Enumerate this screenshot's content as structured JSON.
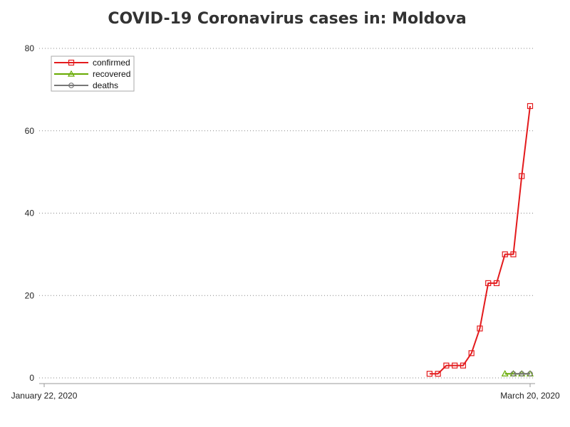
{
  "chart_data": {
    "type": "line",
    "title": "COVID-19 Coronavirus cases in: Moldova",
    "xlabel": "",
    "ylabel": "",
    "x_range": [
      "2020-01-22",
      "2020-03-20"
    ],
    "x_tick_labels": [
      "January 22, 2020",
      "March 20, 2020"
    ],
    "ylim": [
      0,
      80
    ],
    "y_ticks": [
      0,
      20,
      40,
      60,
      80
    ],
    "grid": "horizontal dotted",
    "legend_position": "top-left",
    "series": [
      {
        "name": "confirmed",
        "color": "#e31a1c",
        "marker": "square",
        "points": [
          {
            "x": "2020-03-08",
            "y": 1
          },
          {
            "x": "2020-03-09",
            "y": 1
          },
          {
            "x": "2020-03-10",
            "y": 3
          },
          {
            "x": "2020-03-11",
            "y": 3
          },
          {
            "x": "2020-03-12",
            "y": 3
          },
          {
            "x": "2020-03-13",
            "y": 6
          },
          {
            "x": "2020-03-14",
            "y": 12
          },
          {
            "x": "2020-03-15",
            "y": 23
          },
          {
            "x": "2020-03-16",
            "y": 23
          },
          {
            "x": "2020-03-17",
            "y": 30
          },
          {
            "x": "2020-03-18",
            "y": 30
          },
          {
            "x": "2020-03-19",
            "y": 49
          },
          {
            "x": "2020-03-20",
            "y": 66
          }
        ]
      },
      {
        "name": "recovered",
        "color": "#66aa00",
        "marker": "triangle",
        "points": [
          {
            "x": "2020-03-17",
            "y": 1
          },
          {
            "x": "2020-03-18",
            "y": 1
          },
          {
            "x": "2020-03-19",
            "y": 1
          },
          {
            "x": "2020-03-20",
            "y": 1
          }
        ]
      },
      {
        "name": "deaths",
        "color": "#777777",
        "marker": "circle",
        "points": [
          {
            "x": "2020-03-18",
            "y": 1
          },
          {
            "x": "2020-03-19",
            "y": 1
          },
          {
            "x": "2020-03-20",
            "y": 1
          }
        ]
      }
    ]
  }
}
